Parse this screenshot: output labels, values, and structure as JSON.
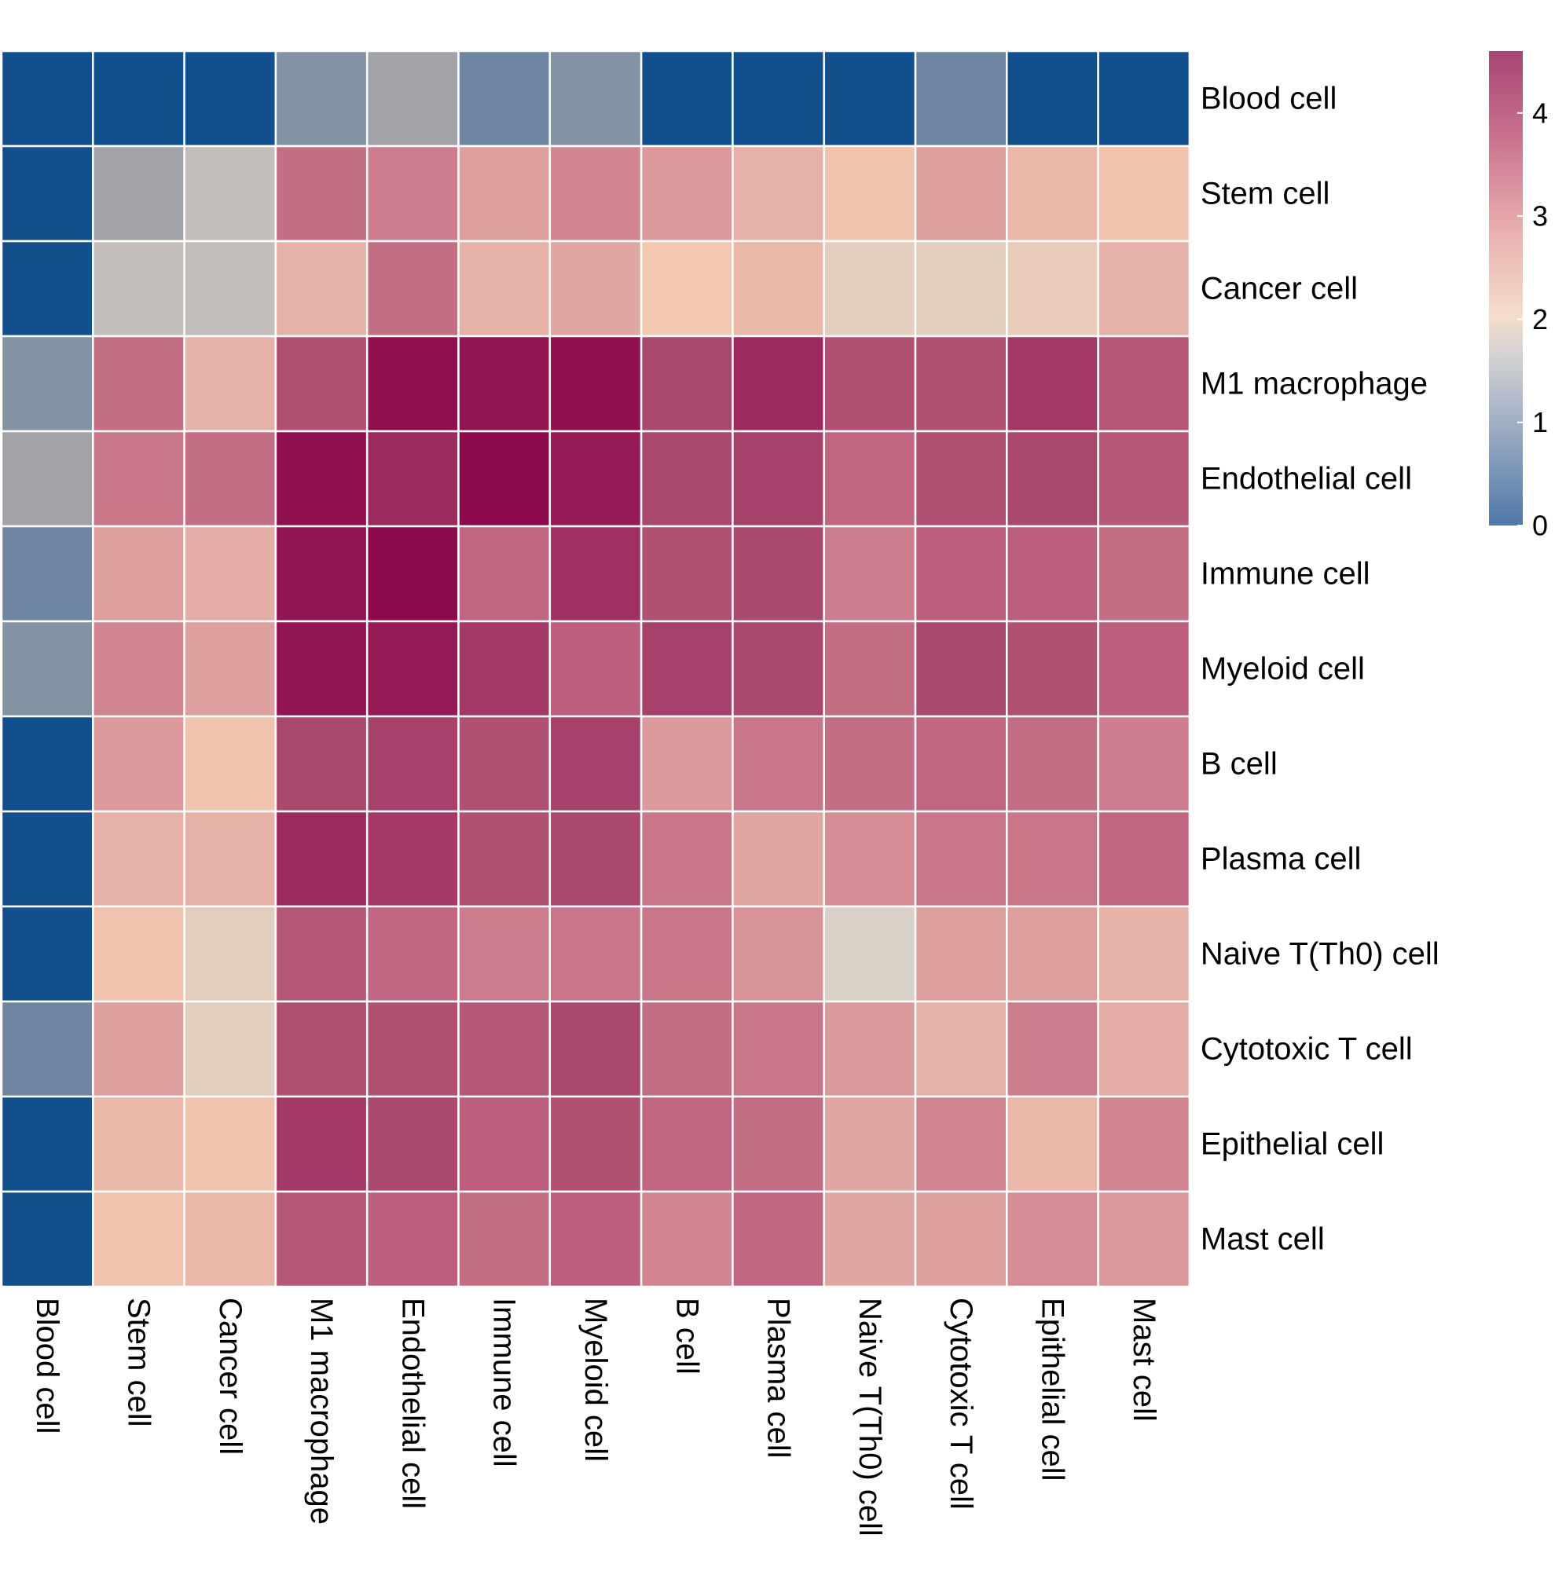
{
  "chart_data": {
    "type": "heatmap",
    "title": "",
    "xlabel": "",
    "ylabel": "",
    "rows": [
      "Blood cell",
      "Stem cell",
      "Cancer cell",
      "M1 macrophage",
      "Endothelial cell",
      "Immune cell",
      "Myeloid cell",
      "B cell",
      "Plasma cell",
      "Naive T(Th0) cell",
      "Cytotoxic T cell",
      "Epithelial cell",
      "Mast cell"
    ],
    "columns": [
      "Blood cell",
      "Stem cell",
      "Cancer cell",
      "M1 macrophage",
      "Endothelial cell",
      "Immune cell",
      "Myeloid cell",
      "B cell",
      "Plasma cell",
      "Naive T(Th0) cell",
      "Cytotoxic T cell",
      "Epithelial cell",
      "Mast cell"
    ],
    "values": [
      [
        -1.5,
        -1.5,
        -1.5,
        1.0,
        1.5,
        0.5,
        1.0,
        -1.5,
        -1.5,
        -1.5,
        0.5,
        -1.5,
        -1.5
      ],
      [
        -1.5,
        1.5,
        1.8,
        3.9,
        3.7,
        3.2,
        3.6,
        3.3,
        2.9,
        2.6,
        3.2,
        2.8,
        2.6
      ],
      [
        -1.5,
        1.8,
        1.8,
        2.9,
        3.9,
        2.9,
        3.1,
        2.5,
        2.8,
        2.2,
        2.2,
        2.3,
        2.9
      ],
      [
        1.0,
        3.9,
        2.9,
        4.3,
        5.2,
        5.1,
        5.2,
        4.4,
        4.8,
        4.3,
        4.3,
        4.6,
        4.2
      ],
      [
        1.5,
        3.8,
        3.9,
        5.2,
        4.8,
        5.3,
        5.0,
        4.4,
        4.5,
        4.0,
        4.3,
        4.4,
        4.2
      ],
      [
        0.5,
        3.2,
        3.0,
        5.1,
        5.3,
        4.0,
        4.7,
        4.3,
        4.4,
        3.7,
        4.1,
        4.1,
        3.9
      ],
      [
        1.0,
        3.6,
        3.2,
        5.1,
        5.0,
        4.6,
        4.1,
        4.5,
        4.4,
        3.9,
        4.4,
        4.3,
        4.1
      ],
      [
        -1.5,
        3.3,
        2.6,
        4.4,
        4.5,
        4.3,
        4.5,
        3.3,
        3.8,
        3.9,
        4.0,
        3.9,
        3.7
      ],
      [
        -1.5,
        2.9,
        2.9,
        4.8,
        4.6,
        4.3,
        4.4,
        3.8,
        3.1,
        3.5,
        3.8,
        3.8,
        4.0
      ],
      [
        -1.5,
        2.6,
        2.2,
        4.2,
        4.0,
        3.7,
        3.8,
        3.8,
        3.4,
        2.0,
        3.2,
        3.2,
        2.9
      ],
      [
        0.5,
        3.2,
        2.2,
        4.3,
        4.3,
        4.2,
        4.4,
        3.9,
        3.8,
        3.3,
        2.9,
        3.7,
        3.0
      ],
      [
        -1.5,
        2.8,
        2.6,
        4.6,
        4.4,
        4.1,
        4.3,
        4.0,
        3.9,
        3.1,
        3.6,
        2.8,
        3.6
      ],
      [
        -1.5,
        2.6,
        2.8,
        4.2,
        4.1,
        3.9,
        4.1,
        3.6,
        4.0,
        3.1,
        3.2,
        3.5,
        3.3
      ]
    ],
    "colorbar": {
      "ticks": [
        0,
        1,
        2,
        3,
        4
      ],
      "tick_labels": [
        "0",
        "1",
        "2",
        "3",
        "4"
      ],
      "range": [
        0,
        4.6
      ]
    },
    "colormap": [
      {
        "value": -1.5,
        "color": "#124f8d"
      },
      {
        "value": 0.0,
        "color": "#5979a0"
      },
      {
        "value": 1.0,
        "color": "#8493a3"
      },
      {
        "value": 1.5,
        "color": "#a1a3a8"
      },
      {
        "value": 2.0,
        "color": "#d9d0c7"
      },
      {
        "value": 2.5,
        "color": "#f2c9b0"
      },
      {
        "value": 3.0,
        "color": "#e3aca5"
      },
      {
        "value": 3.5,
        "color": "#d58d95"
      },
      {
        "value": 4.0,
        "color": "#c06680"
      },
      {
        "value": 4.5,
        "color": "#a5416a"
      },
      {
        "value": 5.0,
        "color": "#951a56"
      },
      {
        "value": 5.3,
        "color": "#8c0a4c"
      }
    ]
  }
}
